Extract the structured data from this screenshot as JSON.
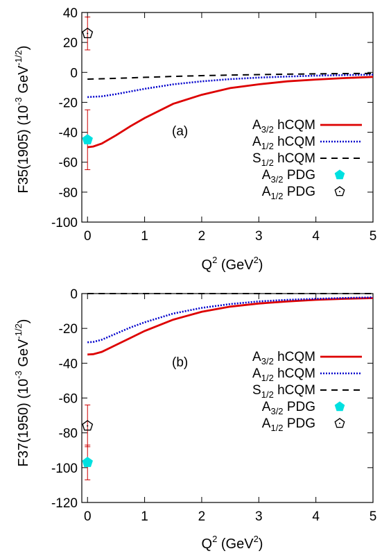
{
  "chart_data": [
    {
      "type": "line",
      "panel_label": "(a)",
      "xlabel": "Q^2 (GeV^2)",
      "ylabel": "F35(1905) (10^-3 GeV^-1/2)",
      "xlim": [
        -0.1,
        5
      ],
      "ylim": [
        -100,
        40
      ],
      "xticks": [
        0,
        1,
        2,
        3,
        4,
        5
      ],
      "yticks": [
        -100,
        -80,
        -60,
        -40,
        -20,
        0,
        20,
        40
      ],
      "grid": false,
      "legend_position": "right",
      "series": [
        {
          "name": "A3/2 hCQM",
          "style": "solid",
          "color": "#dd0000",
          "x": [
            0,
            0.1,
            0.25,
            0.5,
            0.75,
            1.0,
            1.5,
            2.0,
            2.5,
            3.0,
            3.5,
            4.0,
            4.5,
            5.0
          ],
          "y": [
            -50,
            -49.5,
            -47.5,
            -42,
            -36,
            -30.5,
            -21,
            -15,
            -10.5,
            -8,
            -6,
            -4.8,
            -3.8,
            -3
          ]
        },
        {
          "name": "A1/2 hCQM",
          "style": "dotted",
          "color": "#0000cc",
          "x": [
            0,
            0.25,
            0.5,
            1.0,
            1.5,
            2.0,
            2.5,
            3.0,
            3.5,
            4.0,
            4.5,
            5.0
          ],
          "y": [
            -16.5,
            -16,
            -14.5,
            -11,
            -8,
            -6,
            -4.5,
            -3.5,
            -2.8,
            -2.2,
            -1.8,
            -1.5
          ]
        },
        {
          "name": "S1/2 hCQM",
          "style": "dashed",
          "color": "#000000",
          "x": [
            0,
            0.5,
            1.0,
            1.5,
            2.0,
            2.5,
            3.0,
            3.5,
            4.0,
            4.5,
            5.0
          ],
          "y": [
            -4.5,
            -4,
            -3.3,
            -2.7,
            -2.2,
            -1.8,
            -1.5,
            -1.2,
            -1,
            -0.8,
            -0.7
          ]
        }
      ],
      "points": [
        {
          "name": "A3/2 PDG",
          "x": 0,
          "y": -45,
          "err": 20,
          "marker": "filled-pentagon",
          "color": "#00e0e0"
        },
        {
          "name": "A1/2 PDG",
          "x": 0,
          "y": 26,
          "err": 11,
          "marker": "open-pentagon",
          "color": "#000000"
        }
      ]
    },
    {
      "type": "line",
      "panel_label": "(b)",
      "xlabel": "Q^2 (GeV^2)",
      "ylabel": "F37(1950) (10^-3 GeV^-1/2)",
      "xlim": [
        -0.1,
        5
      ],
      "ylim": [
        -120,
        0
      ],
      "xticks": [
        0,
        1,
        2,
        3,
        4,
        5
      ],
      "yticks": [
        -120,
        -100,
        -80,
        -60,
        -40,
        -20,
        0
      ],
      "grid": false,
      "legend_position": "right",
      "series": [
        {
          "name": "A3/2 hCQM",
          "style": "solid",
          "color": "#dd0000",
          "x": [
            0,
            0.1,
            0.25,
            0.5,
            0.75,
            1.0,
            1.5,
            2.0,
            2.5,
            3.0,
            3.5,
            4.0,
            4.5,
            5.0
          ],
          "y": [
            -35,
            -34.8,
            -33.5,
            -29.5,
            -25.5,
            -21.5,
            -15,
            -10.5,
            -7.5,
            -5.7,
            -4.5,
            -3.6,
            -3,
            -2.6
          ]
        },
        {
          "name": "A1/2 hCQM",
          "style": "dotted",
          "color": "#0000cc",
          "x": [
            0,
            0.1,
            0.25,
            0.5,
            0.75,
            1.0,
            1.5,
            2.0,
            2.5,
            3.0,
            3.5,
            4.0,
            4.5,
            5.0
          ],
          "y": [
            -28,
            -27.8,
            -26.5,
            -23,
            -19.5,
            -16.5,
            -11.5,
            -8.2,
            -6,
            -4.5,
            -3.6,
            -3,
            -2.5,
            -2.2
          ]
        },
        {
          "name": "S1/2 hCQM",
          "style": "dashed",
          "color": "#000000",
          "x": [
            0,
            1,
            2,
            3,
            4,
            5
          ],
          "y": [
            0,
            0,
            0,
            0,
            0,
            0
          ]
        }
      ],
      "points": [
        {
          "name": "A3/2 PDG",
          "x": 0,
          "y": -97,
          "err": 10,
          "marker": "filled-pentagon",
          "color": "#00e0e0"
        },
        {
          "name": "A1/2 PDG",
          "x": 0,
          "y": -76,
          "err": 12,
          "marker": "open-pentagon",
          "color": "#000000"
        }
      ]
    }
  ],
  "legend": [
    {
      "main": "A",
      "sub": "3/2",
      "rest": " hCQM"
    },
    {
      "main": "A",
      "sub": "1/2",
      "rest": " hCQM"
    },
    {
      "main": "S",
      "sub": "1/2",
      "rest": " hCQM"
    },
    {
      "main": "A",
      "sub": "3/2",
      "rest": " PDG"
    },
    {
      "main": "A",
      "sub": "1/2",
      "rest": " PDG"
    }
  ],
  "xlabel_parts": {
    "main": "Q",
    "sup": "2",
    "rest": " (GeV",
    "sup2": "2",
    "end": ")"
  },
  "ylabel_parts": [
    {
      "name": "F35(1905) ",
      "pre": "(10",
      "sup1": "-3",
      "mid": " GeV",
      "sup2": "-1/2",
      "end": ")"
    },
    {
      "name": "F37(1950)  ",
      "pre": "(10",
      "sup1": "-3",
      "mid": " GeV",
      "sup2": "-1/2",
      "end": ")"
    }
  ]
}
